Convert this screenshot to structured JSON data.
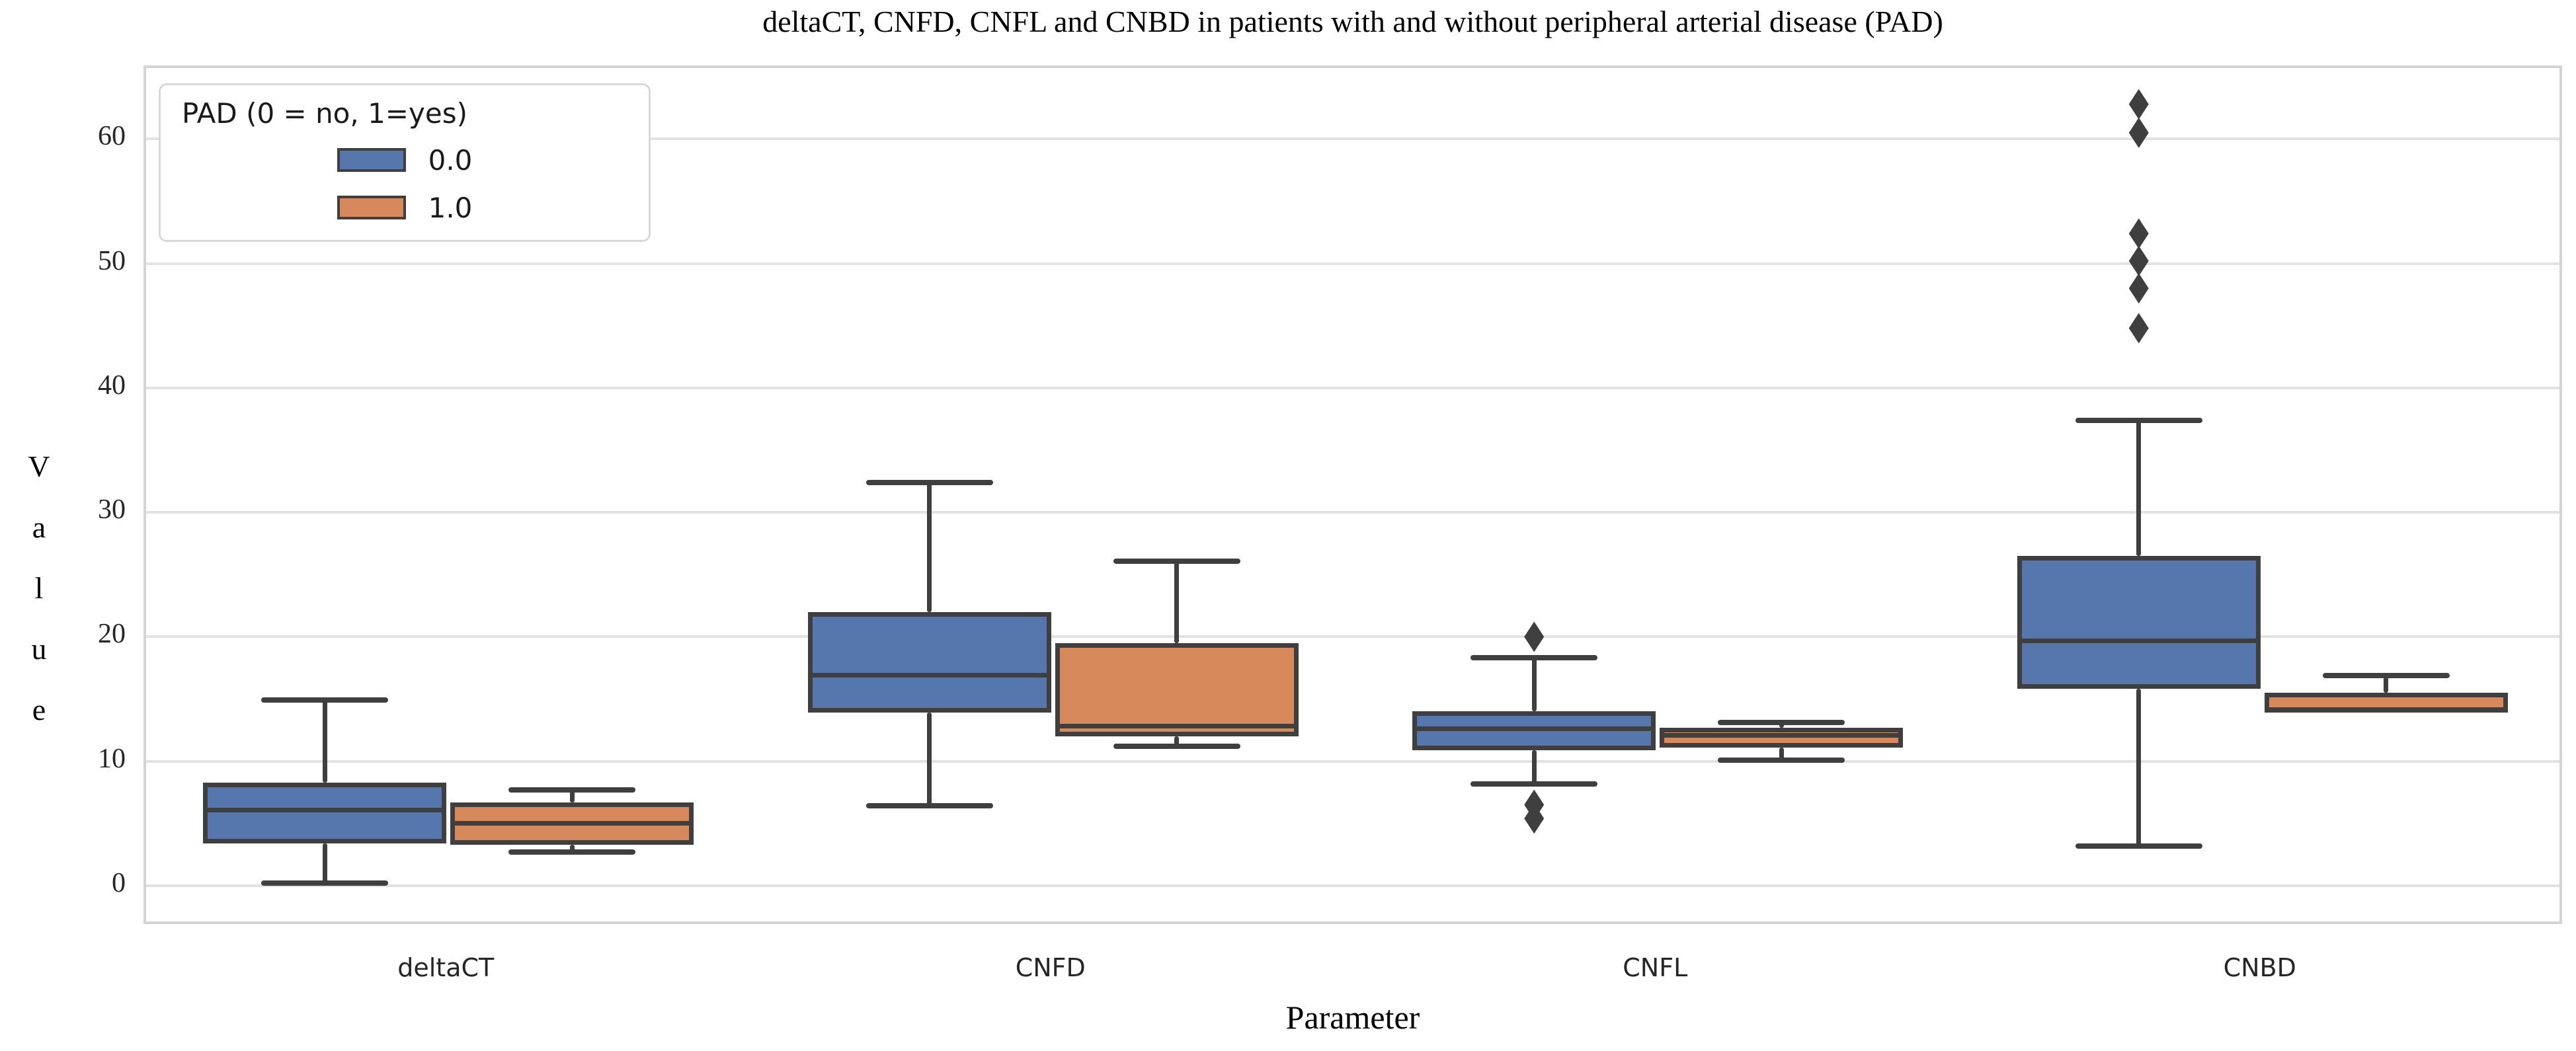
{
  "chart_data": {
    "type": "box",
    "title": "deltaCT, CNFD, CNFL and CNBD in patients with and without peripheral arterial disease (PAD)",
    "xlabel": "Parameter",
    "ylabel": "Value",
    "categories": [
      "deltaCT",
      "CNFD",
      "CNFL",
      "CNBD"
    ],
    "yticks": [
      0,
      10,
      20,
      30,
      40,
      50,
      60
    ],
    "ylim": [
      -3.3,
      65.7
    ],
    "grid": "horizontal-only",
    "legend": {
      "title": "PAD (0 = no, 1=yes)",
      "position": "upper left",
      "entries": [
        {
          "label": "0.0",
          "color": "#5577AE"
        },
        {
          "label": "1.0",
          "color": "#D8895B"
        }
      ]
    },
    "colors": {
      "series_0": "#5577AE",
      "series_1": "#D8895B",
      "line": "#3F3F3F",
      "gridline": "#E2E2E2",
      "spine": "#D4D4D4"
    },
    "series": [
      {
        "name": "0.0",
        "color": "#5577AE",
        "boxes": [
          {
            "category": "deltaCT",
            "whisker_low": 0.2,
            "q1": 3.4,
            "median": 6.1,
            "q3": 8.3,
            "whisker_high": 14.9,
            "outliers": []
          },
          {
            "category": "CNFD",
            "whisker_low": 6.4,
            "q1": 13.9,
            "median": 16.9,
            "q3": 22.0,
            "whisker_high": 32.4,
            "outliers": []
          },
          {
            "category": "CNFL",
            "whisker_low": 8.2,
            "q1": 10.9,
            "median": 12.6,
            "q3": 14.0,
            "whisker_high": 18.3,
            "outliers": [
              20.0,
              6.5,
              5.4
            ]
          },
          {
            "category": "CNBD",
            "whisker_low": 3.2,
            "q1": 15.8,
            "median": 19.7,
            "q3": 26.5,
            "whisker_high": 37.4,
            "outliers": [
              62.8,
              60.5,
              52.4,
              50.2,
              48.0,
              44.8
            ]
          }
        ]
      },
      {
        "name": "1.0",
        "color": "#D8895B",
        "boxes": [
          {
            "category": "deltaCT",
            "whisker_low": 2.7,
            "q1": 3.3,
            "median": 5.0,
            "q3": 6.7,
            "whisker_high": 7.7,
            "outliers": []
          },
          {
            "category": "CNFD",
            "whisker_low": 11.2,
            "q1": 12.0,
            "median": 12.8,
            "q3": 19.5,
            "whisker_high": 26.1,
            "outliers": []
          },
          {
            "category": "CNFL",
            "whisker_low": 10.1,
            "q1": 11.1,
            "median": 12.1,
            "q3": 12.7,
            "whisker_high": 13.1,
            "outliers": []
          },
          {
            "category": "CNBD",
            "whisker_low": 13.9,
            "q1": 13.9,
            "median": 14.15,
            "q3": 15.5,
            "whisker_high": 16.9,
            "outliers": []
          }
        ]
      }
    ]
  }
}
